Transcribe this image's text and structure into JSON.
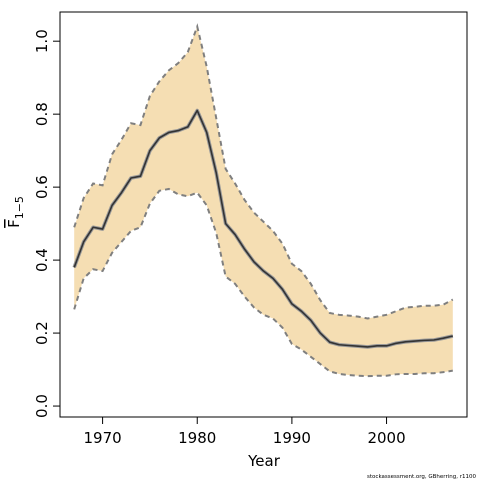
{
  "chart_data": {
    "type": "line",
    "title": "",
    "xlabel": "Year",
    "ylabel_main": "F",
    "ylabel_sub": "1−5",
    "xlim": [
      1965.5,
      2008.5
    ],
    "ylim": [
      -0.03,
      1.08
    ],
    "xticks": [
      1970,
      1980,
      1990,
      2000
    ],
    "yticks": [
      0.0,
      0.2,
      0.4,
      0.6,
      0.8,
      1.0
    ],
    "ytick_labels": [
      "0.0",
      "0.2",
      "0.4",
      "0.6",
      "0.8",
      "1.0"
    ],
    "grid": false,
    "legend": "none",
    "colors": {
      "band": "#f5deb3",
      "bound_line": "#7f7f7f",
      "mean_line": "#333333",
      "mean_halo": "#999999"
    },
    "series": [
      {
        "role": "mean",
        "x": [
          1967,
          1968,
          1969,
          1970,
          1971,
          1972,
          1973,
          1974,
          1975,
          1976,
          1977,
          1978,
          1979,
          1980,
          1981,
          1982,
          1983,
          1984,
          1985,
          1986,
          1987,
          1988,
          1989,
          1990,
          1991,
          1992,
          1993,
          1994,
          1995,
          1996,
          1997,
          1998,
          1999,
          2000,
          2001,
          2002,
          2003,
          2004,
          2005,
          2006,
          2007
        ],
        "y": [
          0.38,
          0.45,
          0.49,
          0.485,
          0.55,
          0.585,
          0.625,
          0.63,
          0.7,
          0.735,
          0.75,
          0.755,
          0.765,
          0.81,
          0.75,
          0.64,
          0.5,
          0.47,
          0.43,
          0.395,
          0.37,
          0.35,
          0.32,
          0.28,
          0.26,
          0.235,
          0.2,
          0.175,
          0.168,
          0.166,
          0.164,
          0.162,
          0.165,
          0.165,
          0.172,
          0.176,
          0.178,
          0.18,
          0.181,
          0.186,
          0.192
        ]
      },
      {
        "role": "upper",
        "x": [
          1967,
          1968,
          1969,
          1970,
          1971,
          1972,
          1973,
          1974,
          1975,
          1976,
          1977,
          1978,
          1979,
          1980,
          1981,
          1982,
          1983,
          1984,
          1985,
          1986,
          1987,
          1988,
          1989,
          1990,
          1991,
          1992,
          1993,
          1994,
          1995,
          1996,
          1997,
          1998,
          1999,
          2000,
          2001,
          2002,
          2003,
          2004,
          2005,
          2006,
          2007
        ],
        "y": [
          0.49,
          0.57,
          0.61,
          0.605,
          0.69,
          0.73,
          0.775,
          0.77,
          0.85,
          0.89,
          0.92,
          0.94,
          0.97,
          1.04,
          0.93,
          0.79,
          0.65,
          0.61,
          0.565,
          0.53,
          0.505,
          0.48,
          0.445,
          0.39,
          0.37,
          0.335,
          0.29,
          0.255,
          0.25,
          0.248,
          0.245,
          0.24,
          0.245,
          0.25,
          0.26,
          0.27,
          0.272,
          0.275,
          0.275,
          0.278,
          0.292
        ]
      },
      {
        "role": "lower",
        "x": [
          1967,
          1968,
          1969,
          1970,
          1971,
          1972,
          1973,
          1974,
          1975,
          1976,
          1977,
          1978,
          1979,
          1980,
          1981,
          1982,
          1983,
          1984,
          1985,
          1986,
          1987,
          1988,
          1989,
          1990,
          1991,
          1992,
          1993,
          1994,
          1995,
          1996,
          1997,
          1998,
          1999,
          2000,
          2001,
          2002,
          2003,
          2004,
          2005,
          2006,
          2007
        ],
        "y": [
          0.265,
          0.35,
          0.375,
          0.37,
          0.42,
          0.45,
          0.48,
          0.49,
          0.555,
          0.59,
          0.595,
          0.58,
          0.575,
          0.585,
          0.55,
          0.475,
          0.355,
          0.335,
          0.3,
          0.27,
          0.25,
          0.24,
          0.215,
          0.17,
          0.155,
          0.135,
          0.115,
          0.095,
          0.088,
          0.085,
          0.083,
          0.082,
          0.083,
          0.083,
          0.087,
          0.088,
          0.088,
          0.09,
          0.09,
          0.093,
          0.097
        ]
      }
    ]
  },
  "credit_text": "stockassessment.org, GBherring, r1100"
}
